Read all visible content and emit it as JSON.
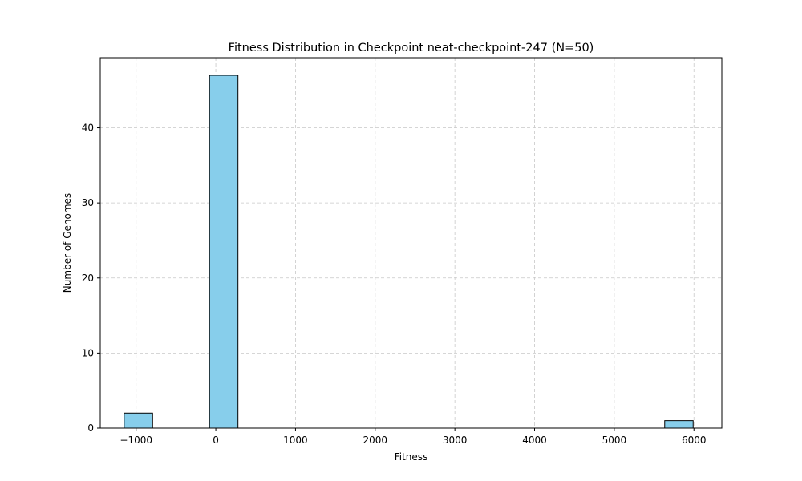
{
  "chart_data": {
    "type": "bar",
    "title": "Fitness Distribution in Checkpoint neat-checkpoint-247 (N=50)",
    "xlabel": "Fitness",
    "ylabel": "Number of Genomes",
    "xlim": [
      -1450,
      6350
    ],
    "ylim": [
      0,
      49.35
    ],
    "xticks": [
      -1000,
      0,
      1000,
      2000,
      3000,
      4000,
      5000,
      6000
    ],
    "xtick_labels": [
      "−1000",
      "0",
      "1000",
      "2000",
      "3000",
      "4000",
      "5000",
      "6000"
    ],
    "yticks": [
      0,
      10,
      20,
      30,
      40
    ],
    "ytick_labels": [
      "0",
      "10",
      "20",
      "30",
      "40"
    ],
    "grid": true,
    "bin_width": 357,
    "bins": [
      {
        "x0": -1150,
        "x1": -793,
        "count": 2
      },
      {
        "x0": -79,
        "x1": 278,
        "count": 47
      },
      {
        "x0": 5633,
        "x1": 5990,
        "count": 1
      }
    ],
    "colors": {
      "bar_fill": "#87ceeb",
      "bar_edge": "#000000",
      "grid": "#c8c8c8"
    }
  }
}
